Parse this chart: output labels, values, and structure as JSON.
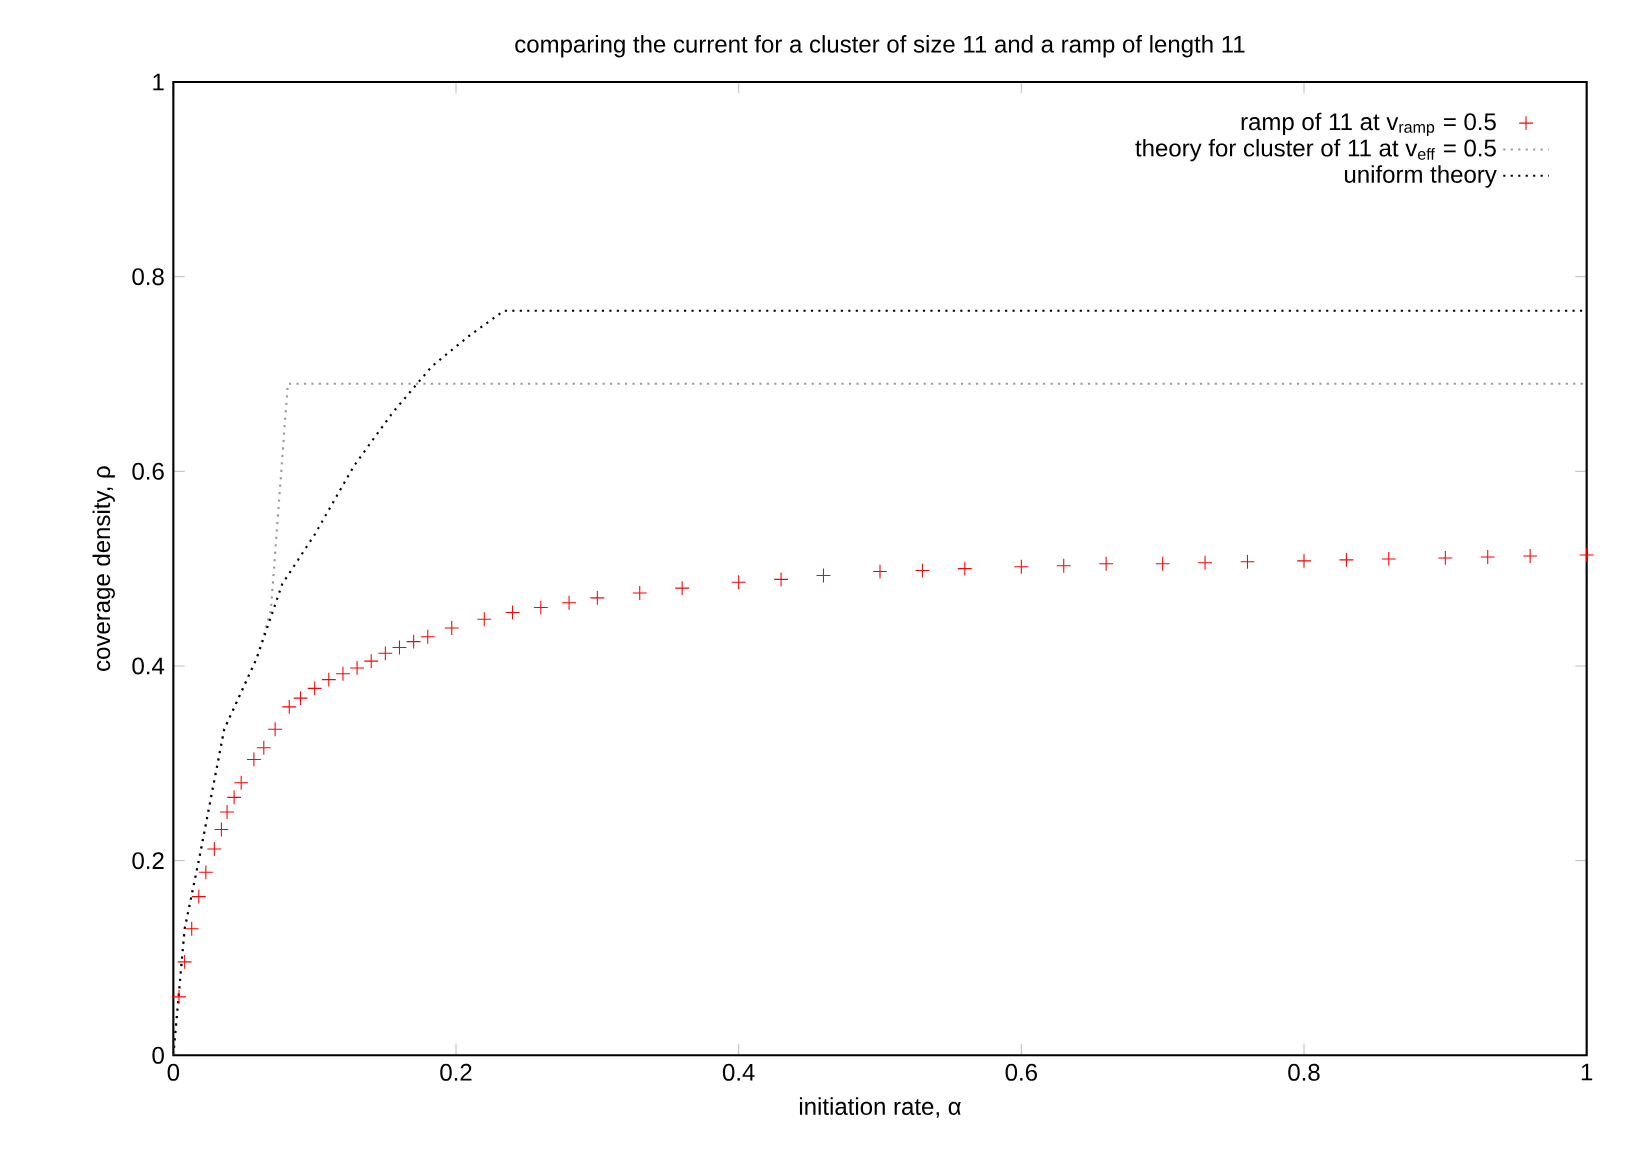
{
  "chart_data": {
    "type": "line",
    "title": "comparing the current for a cluster of size 11 and a ramp of length 11",
    "xlabel": "initiation rate, α",
    "ylabel": "coverage density, ρ",
    "xlim": [
      0,
      1
    ],
    "ylim": [
      0,
      1
    ],
    "xticks": [
      0,
      0.2,
      0.4,
      0.6,
      0.8,
      1
    ],
    "yticks": [
      0,
      0.2,
      0.4,
      0.6,
      0.8,
      1
    ],
    "grid": false,
    "legend": "top right",
    "series": [
      {
        "name": "ramp of 11 at v$_{ramp}$ = 0.5",
        "type": "scatter",
        "marker": "cross",
        "color": "#ff0000",
        "x": [
          0.004,
          0.008,
          0.013,
          0.018,
          0.023,
          0.029,
          0.034,
          0.038,
          0.043,
          0.048,
          0.057,
          0.064,
          0.072,
          0.082,
          0.09,
          0.1,
          0.11,
          0.12,
          0.13,
          0.14,
          0.15,
          0.16,
          0.17,
          0.18,
          0.197,
          0.22,
          0.24,
          0.26,
          0.28,
          0.3,
          0.33,
          0.36,
          0.4,
          0.43,
          0.46,
          0.5,
          0.53,
          0.56,
          0.6,
          0.63,
          0.66,
          0.7,
          0.73,
          0.76,
          0.8,
          0.83,
          0.86,
          0.9,
          0.93,
          0.96,
          1.0
        ],
        "values": [
          0.06,
          0.096,
          0.13,
          0.163,
          0.188,
          0.212,
          0.232,
          0.25,
          0.265,
          0.28,
          0.304,
          0.316,
          0.335,
          0.358,
          0.367,
          0.377,
          0.386,
          0.392,
          0.398,
          0.405,
          0.413,
          0.419,
          0.425,
          0.43,
          0.439,
          0.448,
          0.455,
          0.46,
          0.465,
          0.47,
          0.475,
          0.48,
          0.486,
          0.489,
          0.493,
          0.497,
          0.498,
          0.5,
          0.502,
          0.503,
          0.505,
          0.505,
          0.506,
          0.507,
          0.508,
          0.509,
          0.51,
          0.511,
          0.512,
          0.513,
          0.514
        ]
      },
      {
        "name": "theory for cluster of 11 at v$_{eff}$ = 0.5",
        "line_style": "dotted",
        "color": "#999999",
        "x": [
          0,
          0.008,
          0.018,
          0.036,
          0.059,
          0.069,
          0.081,
          1.0
        ],
        "values": [
          0,
          0.13,
          0.2,
          0.335,
          0.408,
          0.457,
          0.69,
          0.69
        ]
      },
      {
        "name": "uniform theory",
        "line_style": "dotted",
        "color": "#000000",
        "x": [
          0,
          0.008,
          0.018,
          0.036,
          0.059,
          0.077,
          0.1,
          0.128,
          0.155,
          0.183,
          0.21,
          0.234,
          1.0
        ],
        "values": [
          0,
          0.13,
          0.2,
          0.335,
          0.408,
          0.484,
          0.535,
          0.606,
          0.66,
          0.708,
          0.74,
          0.765,
          0.765
        ]
      }
    ]
  }
}
